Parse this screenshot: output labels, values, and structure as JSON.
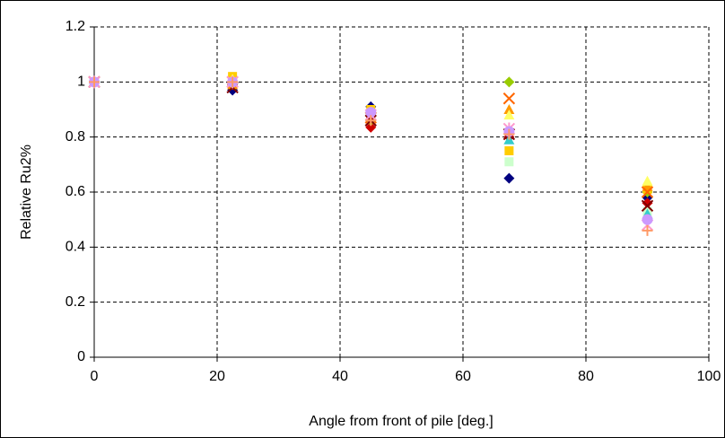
{
  "chart_data": {
    "type": "scatter",
    "x_label": "Angle from front of pile [deg.]",
    "y_label": "Relative Ru2%",
    "x": [
      0,
      22.5,
      45,
      67.5,
      90
    ],
    "xlim": [
      0,
      100
    ],
    "xticks": [
      0,
      20,
      40,
      60,
      80,
      100
    ],
    "ylim": [
      0,
      1.2
    ],
    "yticks": [
      0,
      0.2,
      0.4,
      0.6,
      0.8,
      1,
      1.2
    ],
    "grid": true,
    "series": [
      {
        "color": "#000080",
        "marker": "diamond",
        "values": [
          1,
          0.97,
          0.91,
          0.65,
          0.58
        ]
      },
      {
        "color": "#d00000",
        "marker": "diamond",
        "values": [
          1,
          0.99,
          0.835,
          0.8,
          0.56
        ]
      },
      {
        "color": "#99cc00",
        "marker": "diamond",
        "values": [
          1,
          1.0,
          0.86,
          1.0,
          0.6
        ]
      },
      {
        "color": "#ffcc00",
        "marker": "square",
        "values": [
          1,
          1.02,
          0.9,
          0.75,
          0.61
        ]
      },
      {
        "color": "#ccffcc",
        "marker": "square",
        "values": [
          1,
          1.0,
          0.87,
          0.71,
          0.53
        ]
      },
      {
        "color": "#33cccc",
        "marker": "triangle",
        "values": [
          1,
          1.0,
          0.87,
          0.79,
          0.52
        ]
      },
      {
        "color": "#ff9900",
        "marker": "triangle",
        "values": [
          1,
          0.99,
          0.88,
          0.9,
          0.62
        ]
      },
      {
        "color": "#ffff66",
        "marker": "triangle",
        "values": [
          1,
          1.01,
          0.89,
          0.88,
          0.64
        ]
      },
      {
        "color": "#ff6600",
        "marker": "x",
        "values": [
          1,
          1.0,
          0.87,
          0.94,
          0.6
        ]
      },
      {
        "color": "#800000",
        "marker": "x",
        "values": [
          1,
          0.98,
          0.86,
          0.81,
          0.55
        ]
      },
      {
        "color": "#ff99cc",
        "marker": "star",
        "values": [
          1,
          1.0,
          0.88,
          0.83,
          0.48
        ]
      },
      {
        "color": "#cc99ff",
        "marker": "circle",
        "values": [
          1,
          1.0,
          0.89,
          0.82,
          0.5
        ]
      },
      {
        "color": "#ff9966",
        "marker": "plus",
        "values": [
          1,
          1.0,
          0.86,
          0.81,
          0.46
        ]
      }
    ]
  }
}
